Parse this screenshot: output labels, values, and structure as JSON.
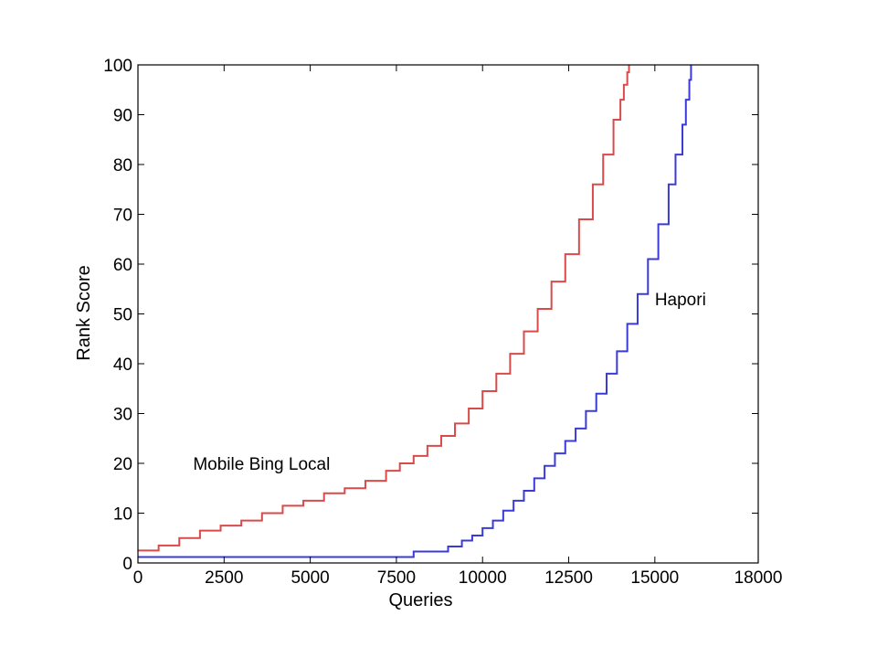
{
  "chart_data": {
    "type": "line",
    "xlabel": "Queries",
    "ylabel": "Rank Score",
    "xlim": [
      0,
      18000
    ],
    "ylim": [
      0,
      100
    ],
    "xticks": [
      0,
      2500,
      5000,
      7500,
      10000,
      12500,
      15000,
      18000
    ],
    "yticks": [
      0,
      10,
      20,
      30,
      40,
      50,
      60,
      70,
      80,
      90,
      100
    ],
    "grid": false,
    "series": [
      {
        "name": "Mobile Bing Local",
        "color": "#d94a4a",
        "step": true,
        "x": [
          0,
          600,
          1200,
          1800,
          2400,
          3000,
          3600,
          4200,
          4800,
          5400,
          6000,
          6600,
          7200,
          7600,
          8000,
          8400,
          8800,
          9200,
          9600,
          10000,
          10400,
          10800,
          11200,
          11600,
          12000,
          12400,
          12800,
          13200,
          13500,
          13800,
          14000,
          14100,
          14200,
          14250
        ],
        "y": [
          2.5,
          3.5,
          5,
          6.5,
          7.5,
          8.5,
          10,
          11.5,
          12.5,
          14,
          15,
          16.5,
          18.5,
          20,
          21.5,
          23.5,
          25.5,
          28,
          31,
          34.5,
          38,
          42,
          46.5,
          51,
          56.5,
          62,
          69,
          76,
          82,
          89,
          93,
          96,
          98.5,
          100
        ]
      },
      {
        "name": "Hapori",
        "color": "#3a3ad9",
        "step": true,
        "x": [
          0,
          7900,
          8000,
          9000,
          9400,
          9700,
          10000,
          10300,
          10600,
          10900,
          11200,
          11500,
          11800,
          12100,
          12400,
          12700,
          13000,
          13300,
          13600,
          13900,
          14200,
          14500,
          14800,
          15100,
          15400,
          15600,
          15800,
          15900,
          16000,
          16050
        ],
        "y": [
          1.2,
          1.2,
          2.3,
          3.3,
          4.5,
          5.5,
          7,
          8.5,
          10.5,
          12.5,
          14.5,
          17,
          19.5,
          22,
          24.5,
          27,
          30.5,
          34,
          38,
          42.5,
          48,
          54,
          61,
          68,
          76,
          82,
          88,
          93,
          97,
          100
        ]
      }
    ],
    "annotations": [
      {
        "text": "Mobile Bing Local",
        "x": 1600,
        "y": 20
      },
      {
        "text": "Hapori",
        "x": 15000,
        "y": 53
      }
    ]
  }
}
